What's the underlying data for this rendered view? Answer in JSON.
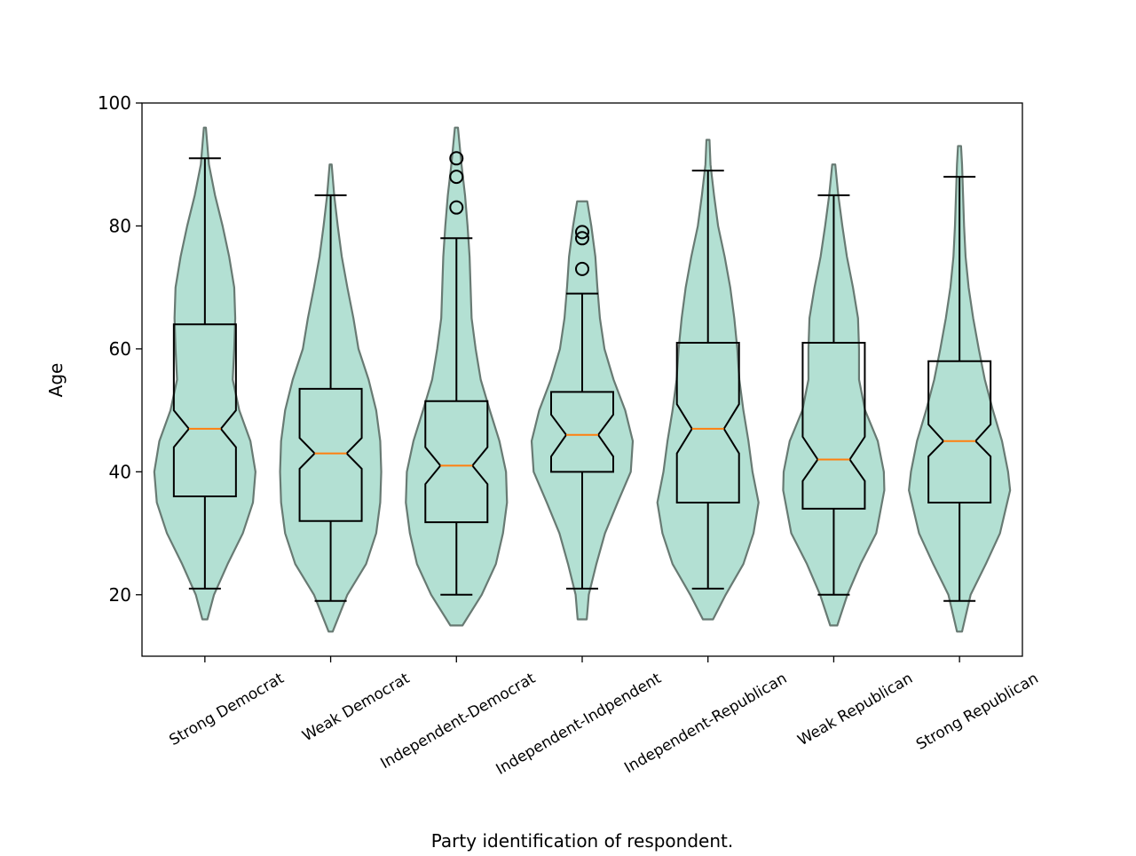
{
  "chart_data": {
    "type": "violin+boxplot",
    "title": "",
    "xlabel": "Party identification of respondent.",
    "ylabel": "Age",
    "ylim": [
      10,
      100
    ],
    "yticks": [
      20,
      40,
      60,
      80,
      100
    ],
    "grid": false,
    "colors": {
      "violin_fill": "#b3e0d3",
      "violin_edge": "#687a73",
      "box": "#000000",
      "median": "#ff7f0e"
    },
    "categories": [
      "Strong Democrat",
      "Weak Democrat",
      "Independent-Democrat",
      "Independent-Indpendent",
      "Independent-Republican",
      "Weak Republican",
      "Strong Republican"
    ],
    "boxes": [
      {
        "whislo": 21,
        "q1": 36,
        "med": 47,
        "q3": 64,
        "whishi": 91,
        "notch": [
          44,
          50
        ],
        "fliers": []
      },
      {
        "whislo": 19,
        "q1": 32,
        "med": 43,
        "q3": 53.5,
        "whishi": 85,
        "notch": [
          40.5,
          45.5
        ],
        "fliers": []
      },
      {
        "whislo": 20,
        "q1": 31.8,
        "med": 41,
        "q3": 51.5,
        "whishi": 78,
        "notch": [
          38,
          44
        ],
        "fliers": [
          83,
          88,
          91
        ]
      },
      {
        "whislo": 21,
        "q1": 40,
        "med": 46,
        "q3": 53,
        "whishi": 69,
        "notch": [
          42.5,
          49.3
        ],
        "fliers": [
          73,
          78,
          79
        ]
      },
      {
        "whislo": 21,
        "q1": 35,
        "med": 47,
        "q3": 61,
        "whishi": 89,
        "notch": [
          43,
          51
        ],
        "fliers": []
      },
      {
        "whislo": 20,
        "q1": 34,
        "med": 42,
        "q3": 61,
        "whishi": 85,
        "notch": [
          38.5,
          45.7
        ],
        "fliers": []
      },
      {
        "whislo": 19,
        "q1": 35,
        "med": 45,
        "q3": 58,
        "whishi": 88,
        "notch": [
          42.5,
          47.7
        ],
        "fliers": []
      }
    ],
    "violins": [
      [
        [
          16,
          0.05
        ],
        [
          20,
          0.18
        ],
        [
          25,
          0.45
        ],
        [
          30,
          0.75
        ],
        [
          35,
          0.95
        ],
        [
          40,
          1.0
        ],
        [
          45,
          0.9
        ],
        [
          50,
          0.68
        ],
        [
          55,
          0.55
        ],
        [
          60,
          0.58
        ],
        [
          65,
          0.6
        ],
        [
          70,
          0.58
        ],
        [
          75,
          0.48
        ],
        [
          80,
          0.35
        ],
        [
          85,
          0.2
        ],
        [
          90,
          0.08
        ],
        [
          96,
          0.02
        ]
      ],
      [
        [
          14,
          0.04
        ],
        [
          20,
          0.33
        ],
        [
          25,
          0.7
        ],
        [
          30,
          0.9
        ],
        [
          35,
          0.98
        ],
        [
          40,
          1.0
        ],
        [
          45,
          0.98
        ],
        [
          50,
          0.9
        ],
        [
          55,
          0.75
        ],
        [
          60,
          0.55
        ],
        [
          65,
          0.45
        ],
        [
          70,
          0.33
        ],
        [
          75,
          0.22
        ],
        [
          80,
          0.14
        ],
        [
          85,
          0.07
        ],
        [
          90,
          0.02
        ]
      ],
      [
        [
          15,
          0.12
        ],
        [
          20,
          0.5
        ],
        [
          25,
          0.78
        ],
        [
          30,
          0.92
        ],
        [
          35,
          1.0
        ],
        [
          40,
          0.98
        ],
        [
          45,
          0.85
        ],
        [
          50,
          0.66
        ],
        [
          55,
          0.48
        ],
        [
          60,
          0.38
        ],
        [
          65,
          0.3
        ],
        [
          70,
          0.28
        ],
        [
          75,
          0.26
        ],
        [
          80,
          0.22
        ],
        [
          85,
          0.17
        ],
        [
          90,
          0.1
        ],
        [
          96,
          0.03
        ]
      ],
      [
        [
          16,
          0.09
        ],
        [
          20,
          0.13
        ],
        [
          25,
          0.28
        ],
        [
          30,
          0.45
        ],
        [
          35,
          0.7
        ],
        [
          40,
          0.96
        ],
        [
          45,
          1.0
        ],
        [
          50,
          0.85
        ],
        [
          55,
          0.62
        ],
        [
          60,
          0.44
        ],
        [
          65,
          0.35
        ],
        [
          70,
          0.3
        ],
        [
          75,
          0.26
        ],
        [
          80,
          0.18
        ],
        [
          84,
          0.1
        ]
      ],
      [
        [
          16,
          0.1
        ],
        [
          20,
          0.35
        ],
        [
          25,
          0.7
        ],
        [
          30,
          0.9
        ],
        [
          35,
          1.0
        ],
        [
          40,
          0.88
        ],
        [
          45,
          0.8
        ],
        [
          50,
          0.7
        ],
        [
          55,
          0.62
        ],
        [
          60,
          0.58
        ],
        [
          65,
          0.52
        ],
        [
          70,
          0.44
        ],
        [
          75,
          0.33
        ],
        [
          80,
          0.2
        ],
        [
          85,
          0.12
        ],
        [
          90,
          0.05
        ],
        [
          94,
          0.03
        ]
      ],
      [
        [
          15,
          0.07
        ],
        [
          20,
          0.27
        ],
        [
          25,
          0.53
        ],
        [
          30,
          0.84
        ],
        [
          37,
          1.0
        ],
        [
          40,
          0.99
        ],
        [
          45,
          0.87
        ],
        [
          50,
          0.62
        ],
        [
          55,
          0.5
        ],
        [
          60,
          0.5
        ],
        [
          65,
          0.48
        ],
        [
          70,
          0.38
        ],
        [
          75,
          0.26
        ],
        [
          80,
          0.17
        ],
        [
          85,
          0.09
        ],
        [
          90,
          0.03
        ]
      ],
      [
        [
          14,
          0.05
        ],
        [
          20,
          0.22
        ],
        [
          25,
          0.52
        ],
        [
          30,
          0.8
        ],
        [
          37,
          1.0
        ],
        [
          40,
          0.96
        ],
        [
          45,
          0.84
        ],
        [
          50,
          0.66
        ],
        [
          55,
          0.5
        ],
        [
          60,
          0.38
        ],
        [
          65,
          0.27
        ],
        [
          70,
          0.18
        ],
        [
          75,
          0.12
        ],
        [
          80,
          0.09
        ],
        [
          85,
          0.07
        ],
        [
          90,
          0.05
        ],
        [
          93,
          0.03
        ]
      ]
    ]
  }
}
